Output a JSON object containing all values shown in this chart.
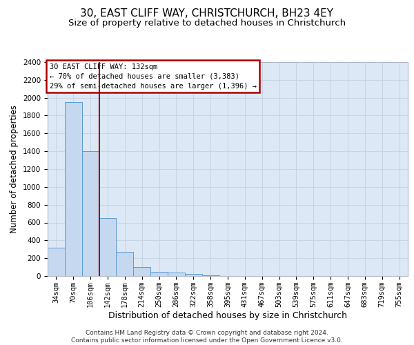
{
  "title": "30, EAST CLIFF WAY, CHRISTCHURCH, BH23 4EY",
  "subtitle": "Size of property relative to detached houses in Christchurch",
  "xlabel": "Distribution of detached houses by size in Christchurch",
  "ylabel": "Number of detached properties",
  "footnote1": "Contains HM Land Registry data © Crown copyright and database right 2024.",
  "footnote2": "Contains public sector information licensed under the Open Government Licence v3.0.",
  "ann_line1": "30 EAST CLIFF WAY: 132sqm",
  "ann_line2": "← 70% of detached houses are smaller (3,383)",
  "ann_line3": "29% of semi-detached houses are larger (1,396) →",
  "bin_labels": [
    "34sqm",
    "70sqm",
    "106sqm",
    "142sqm",
    "178sqm",
    "214sqm",
    "250sqm",
    "286sqm",
    "322sqm",
    "358sqm",
    "395sqm",
    "431sqm",
    "467sqm",
    "503sqm",
    "539sqm",
    "575sqm",
    "611sqm",
    "647sqm",
    "683sqm",
    "719sqm",
    "755sqm"
  ],
  "bar_heights": [
    320,
    1950,
    1400,
    650,
    270,
    100,
    50,
    35,
    20,
    10,
    0,
    0,
    0,
    0,
    0,
    0,
    0,
    0,
    0,
    0,
    0
  ],
  "bar_color": "#c5d8ef",
  "bar_edge_color": "#5b9bd5",
  "red_line_x": 2.5,
  "ylim_max": 2400,
  "yticks": [
    0,
    200,
    400,
    600,
    800,
    1000,
    1200,
    1400,
    1600,
    1800,
    2000,
    2200,
    2400
  ],
  "grid_color": "#c8d4e4",
  "bg_color": "#dce8f5",
  "ann_edge_color": "#aa0000",
  "title_fontsize": 11,
  "subtitle_fontsize": 9.5,
  "ylabel_fontsize": 8.5,
  "xlabel_fontsize": 9,
  "tick_fontsize": 7.5,
  "footnote_fontsize": 6.5
}
